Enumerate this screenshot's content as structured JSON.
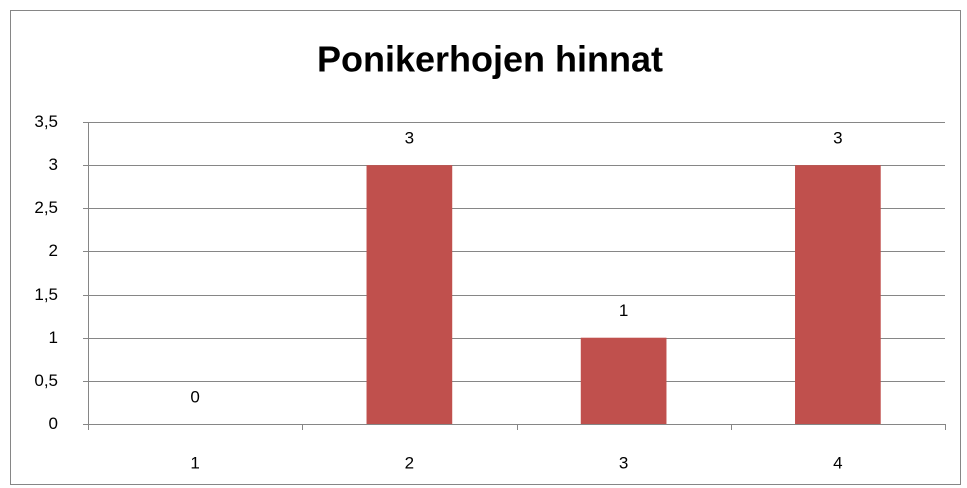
{
  "chart_data": {
    "type": "bar",
    "title": "Ponikerhojen hinnat",
    "categories": [
      "1",
      "2",
      "3",
      "4"
    ],
    "values": [
      0,
      3,
      1,
      3
    ],
    "color": "#c0504d",
    "ylim": [
      0,
      3.5
    ],
    "yticks": [
      0,
      {
        "value": 0.5,
        "label": "0,5"
      },
      1,
      {
        "value": 1.5,
        "label": "1,5"
      },
      2,
      {
        "value": 2.5,
        "label": "2,5"
      },
      3,
      {
        "value": 3.5,
        "label": "3,5"
      }
    ],
    "grid": true
  }
}
